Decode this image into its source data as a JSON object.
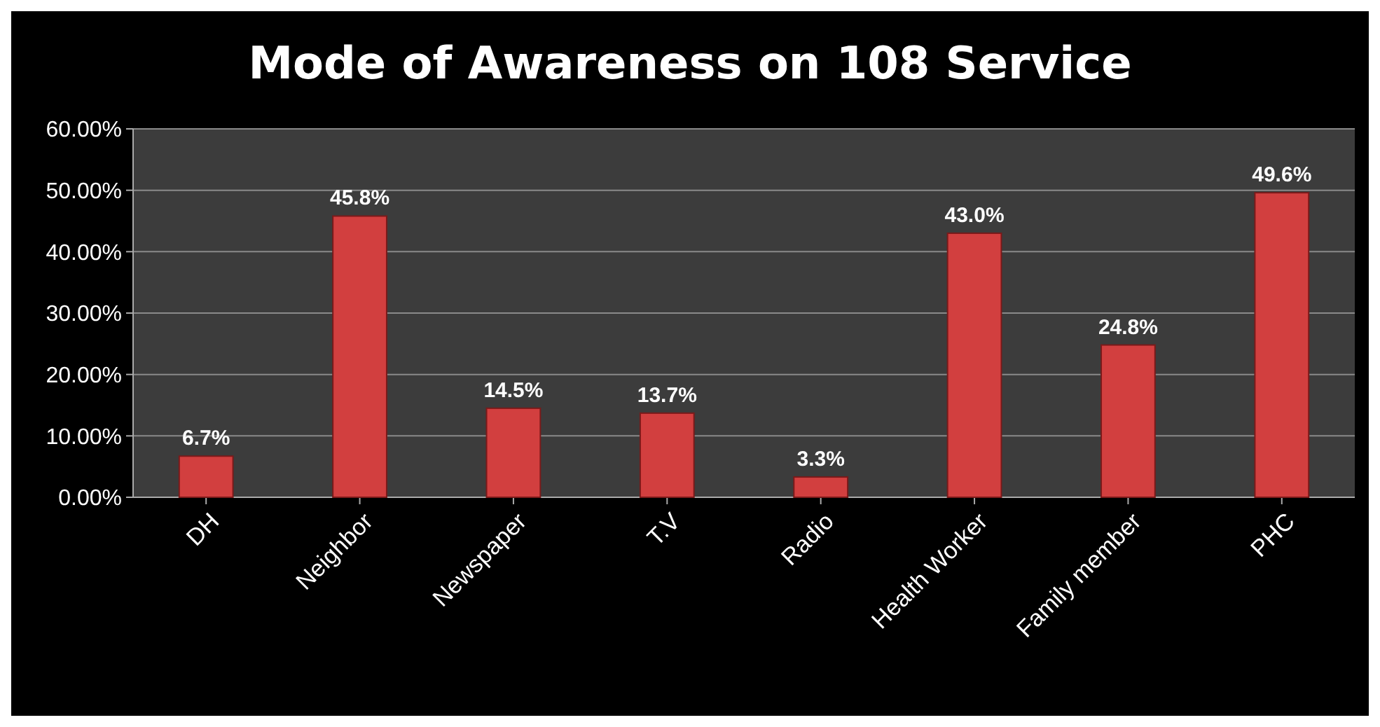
{
  "chart_data": {
    "type": "bar",
    "title": "Mode of Awareness on 108 Service",
    "categories": [
      "DH",
      "Neighbor",
      "Newspaper",
      "T.V",
      "Radio",
      "Health Worker",
      "Family member",
      "PHC"
    ],
    "values": [
      6.7,
      45.8,
      14.5,
      13.7,
      3.3,
      43.0,
      24.8,
      49.6
    ],
    "value_labels": [
      "6.7%",
      "45.8%",
      "14.5%",
      "13.7%",
      "3.3%",
      "43.0%",
      "24.8%",
      "49.6%"
    ],
    "color": "#d23f3f",
    "ylim": [
      0,
      60
    ],
    "yticks": [
      {
        "value": 0,
        "label": "0.00%"
      },
      {
        "value": 10,
        "label": "10.00%"
      },
      {
        "value": 20,
        "label": "20.00%"
      },
      {
        "value": 30,
        "label": "30.00%"
      },
      {
        "value": 40,
        "label": "40.00%"
      },
      {
        "value": 50,
        "label": "50.00%"
      },
      {
        "value": 60,
        "label": "60.00%"
      }
    ],
    "grid": "y"
  }
}
